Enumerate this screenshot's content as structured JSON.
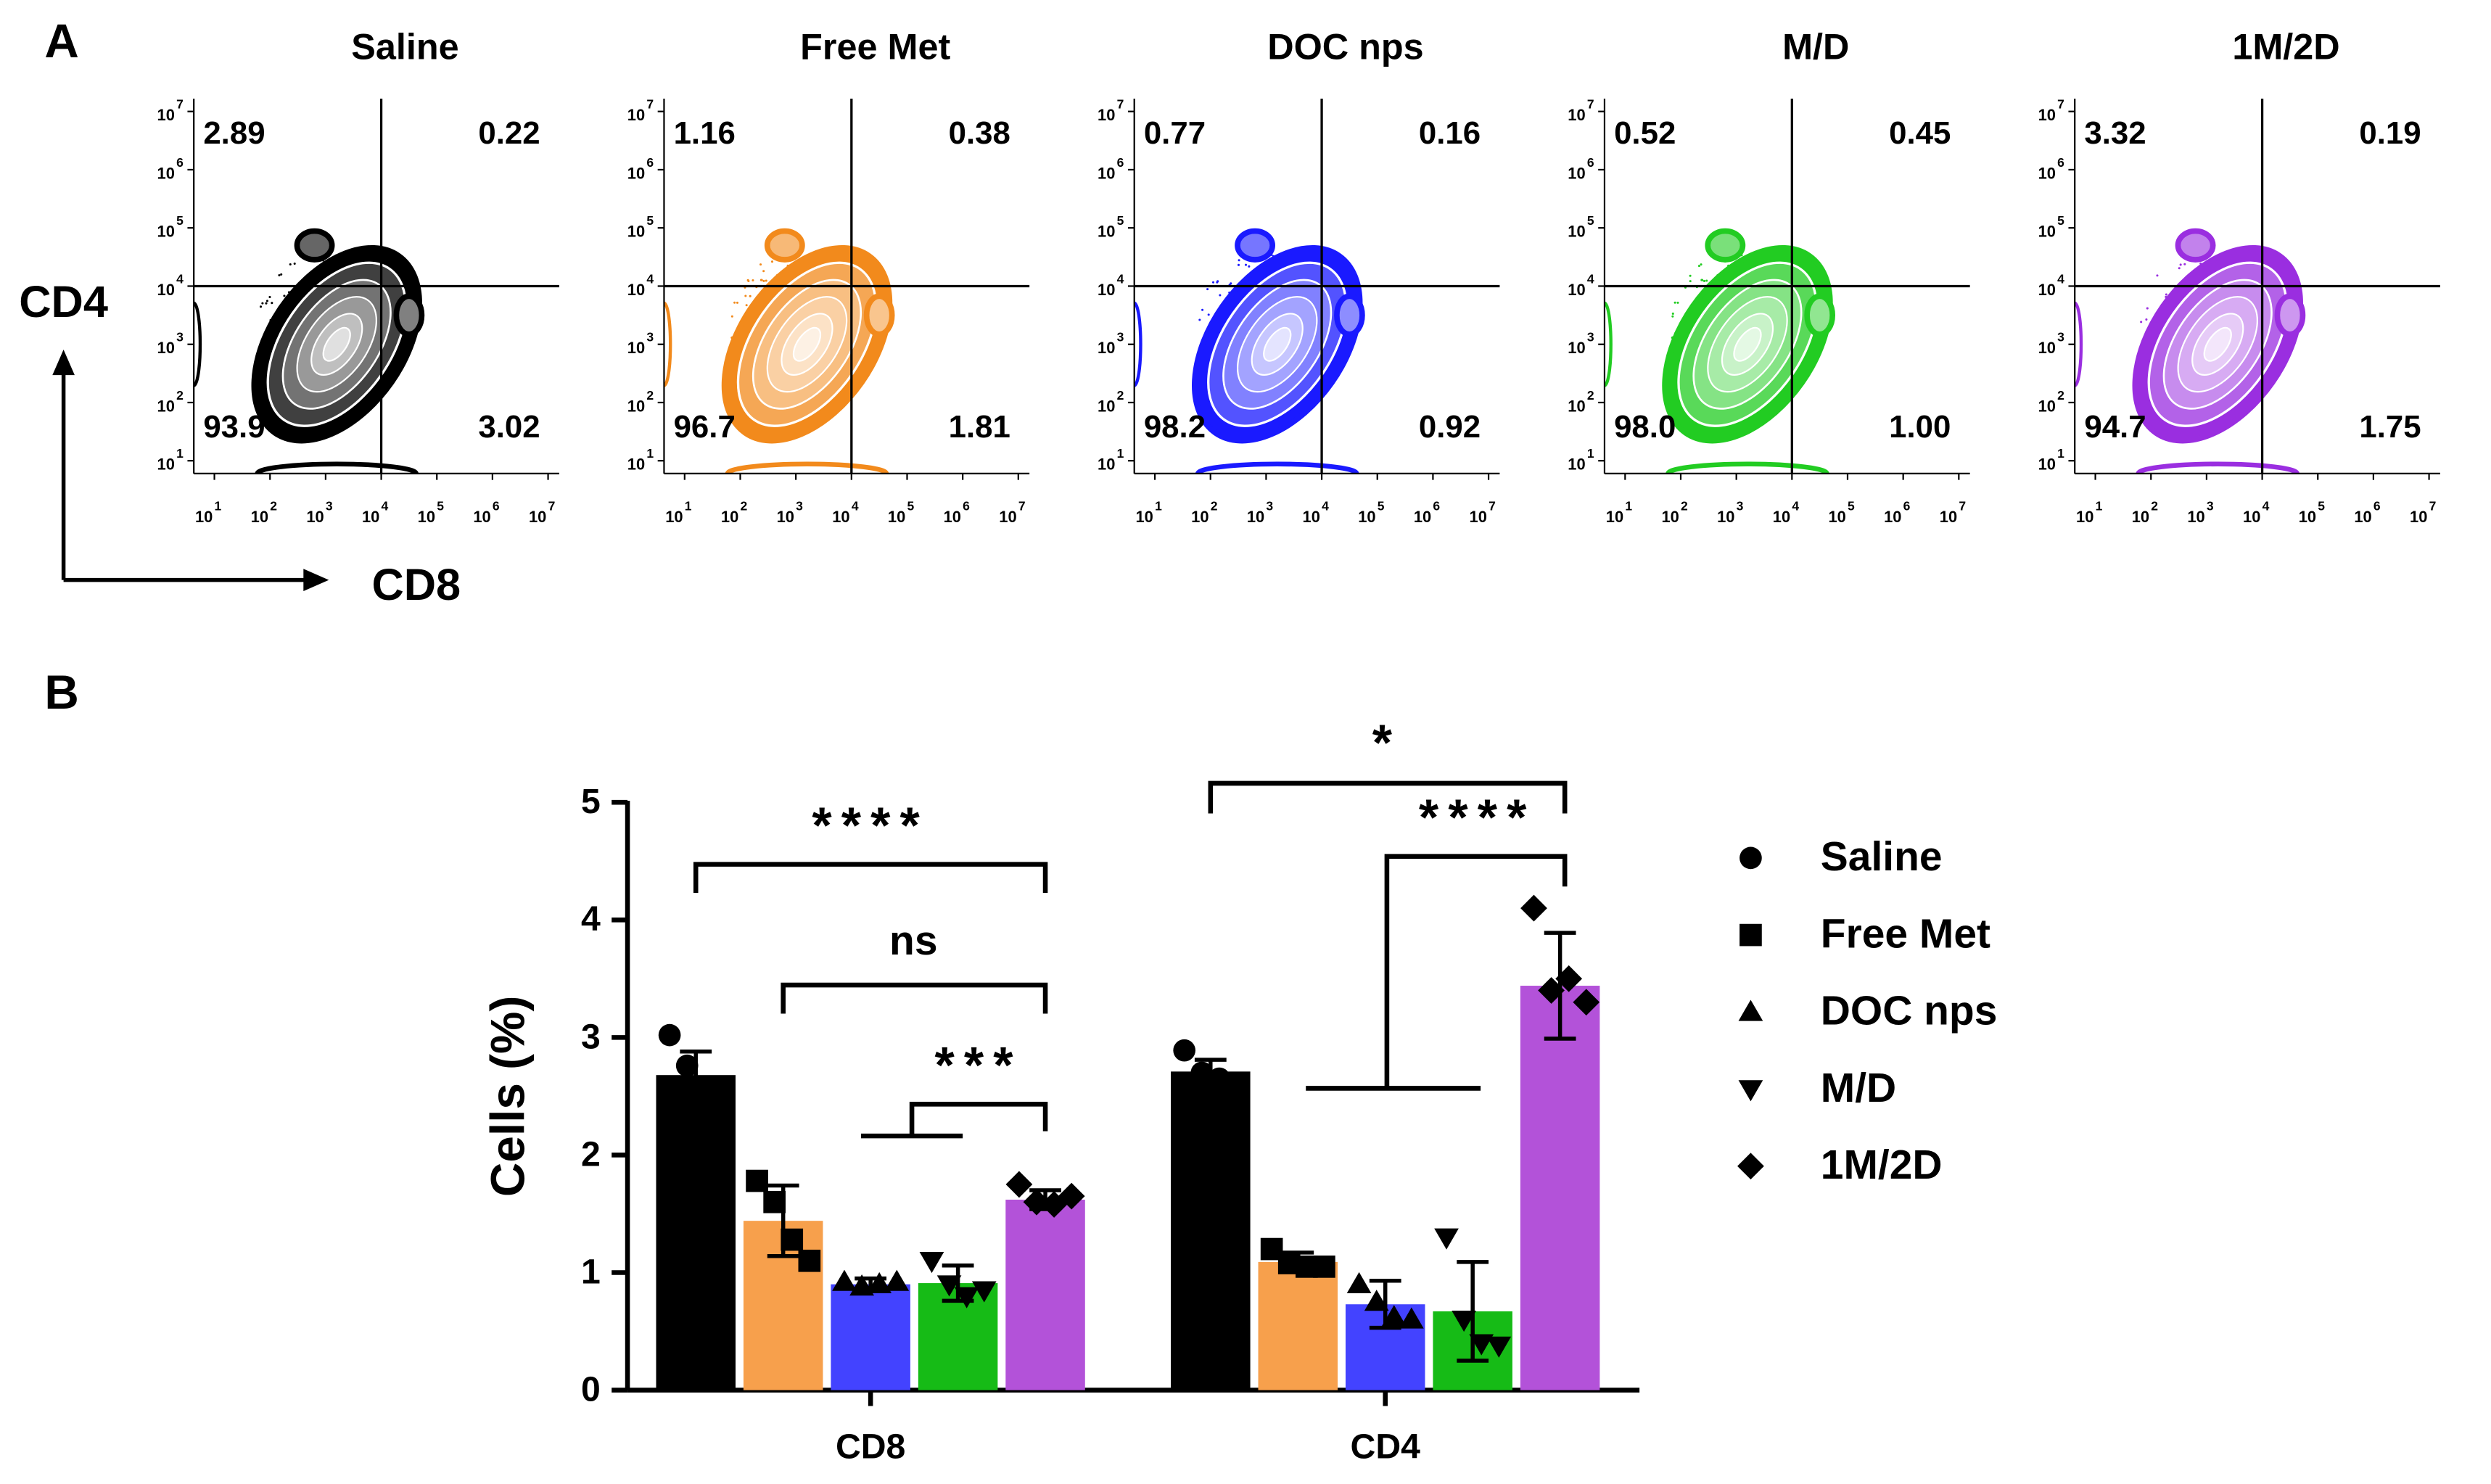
{
  "panel_labels": [
    "A",
    "B"
  ],
  "flow": {
    "x_label": "CD8",
    "y_label": "CD4",
    "tick_base": "10",
    "tick_exponents": [
      1,
      2,
      3,
      4,
      5,
      6,
      7
    ],
    "xlim": [
      0.63,
      7.2
    ],
    "ylim": [
      0.78,
      7.22
    ],
    "gate": [
      4,
      4
    ],
    "panels": [
      {
        "title": "Saline",
        "color": "#000000",
        "quadrants": [
          "2.89",
          "0.22",
          "93.9",
          "3.02"
        ]
      },
      {
        "title": "Free Met",
        "color": "#f28a1c",
        "quadrants": [
          "1.16",
          "0.38",
          "96.7",
          "1.81"
        ]
      },
      {
        "title": "DOC nps",
        "color": "#1a1aff",
        "quadrants": [
          "0.77",
          "0.16",
          "98.2",
          "0.92"
        ]
      },
      {
        "title": "M/D",
        "color": "#22cc22",
        "quadrants": [
          "0.52",
          "0.45",
          "98.0",
          "1.00"
        ]
      },
      {
        "title": "1M/2D",
        "color": "#9a2ee0",
        "quadrants": [
          "3.32",
          "0.19",
          "94.7",
          "1.75"
        ]
      }
    ]
  },
  "chart_data": {
    "type": "bar",
    "y_label": "Cells (%)",
    "categories": [
      "CD8",
      "CD4"
    ],
    "ylim": [
      0,
      5
    ],
    "yticks": [
      0,
      1,
      2,
      3,
      4,
      5
    ],
    "series": [
      {
        "name": "Saline",
        "color": "#000000",
        "marker": "circle",
        "values": [
          2.68,
          2.71
        ],
        "errors": [
          0.2,
          0.1
        ],
        "points": [
          [
            3.02,
            2.76,
            2.5,
            2.44
          ],
          [
            2.89,
            2.7,
            2.65,
            2.6
          ]
        ]
      },
      {
        "name": "Free Met",
        "color": "#f7a04c",
        "marker": "square",
        "values": [
          1.44,
          1.09
        ],
        "errors": [
          0.3,
          0.08
        ],
        "points": [
          [
            1.78,
            1.6,
            1.28,
            1.1
          ],
          [
            1.2,
            1.08,
            1.05,
            1.05
          ]
        ]
      },
      {
        "name": "DOC nps",
        "color": "#4343ff",
        "marker": "triangle-up",
        "values": [
          0.9,
          0.73
        ],
        "errors": [
          0.05,
          0.2
        ],
        "points": [
          [
            0.92,
            0.88,
            0.9,
            0.92
          ],
          [
            0.9,
            0.75,
            0.62,
            0.6
          ]
        ]
      },
      {
        "name": "M/D",
        "color": "#16bb16",
        "marker": "triangle-down",
        "values": [
          0.91,
          0.67
        ],
        "errors": [
          0.15,
          0.42
        ],
        "points": [
          [
            1.1,
            0.9,
            0.8,
            0.85
          ],
          [
            1.3,
            0.6,
            0.4,
            0.38
          ]
        ]
      },
      {
        "name": "1M/2D",
        "color": "#b352d9",
        "marker": "diamond",
        "values": [
          1.62,
          3.44
        ],
        "errors": [
          0.08,
          0.45
        ],
        "points": [
          [
            1.75,
            1.6,
            1.58,
            1.65
          ],
          [
            4.1,
            3.4,
            3.5,
            3.3
          ]
        ]
      }
    ],
    "annotations": [
      {
        "text": "****",
        "category": 0,
        "from": 0,
        "to": 4
      },
      {
        "text": "ns",
        "category": 0,
        "from": 1,
        "to": 4
      },
      {
        "text": "***",
        "category": 0,
        "from": 2,
        "to": 4
      },
      {
        "text": "*",
        "category": 1,
        "from": 0,
        "to": 4
      },
      {
        "text": "****",
        "category": 1,
        "from": 1,
        "to": 4
      }
    ]
  }
}
